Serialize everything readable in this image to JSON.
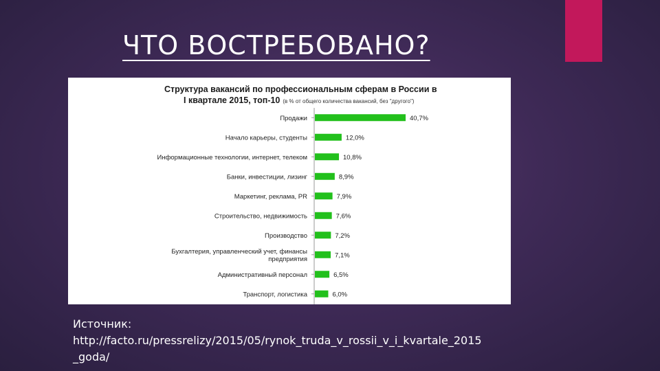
{
  "slide": {
    "title": "ЧТО ВОСТРЕБОВАНО? ",
    "source_label": "Источник:",
    "source_url_line1": "http://facto.ru/pressrelizy/2015/05/rynok_truda_v_rossii_v_i_kvartale_2015",
    "source_url_line2": "_goda/"
  },
  "colors": {
    "accent": "#c2185b",
    "bar": "#22c01c",
    "background": "#3f2a57"
  },
  "chart_data": {
    "type": "bar",
    "orientation": "horizontal",
    "title_line1": "Структура вакансий по профессиональным сферам в России в",
    "title_line2": "I квартале 2015, топ-10",
    "subtitle": "(в % от общего количества вакансий, без \"другого\")",
    "xlabel": "",
    "ylabel": "",
    "xlim": [
      0,
      45
    ],
    "grid": false,
    "legend": "none",
    "categories": [
      [
        "Продажи"
      ],
      [
        "Начало карьеры, студенты"
      ],
      [
        "Информационные технологии, интернет, телеком"
      ],
      [
        "Банки, инвестиции, лизинг"
      ],
      [
        "Маркетинг, реклама, PR"
      ],
      [
        "Строительство, недвижимость"
      ],
      [
        "Производство"
      ],
      [
        "Бухгалтерия, управленческий учет, финансы",
        "предприятия"
      ],
      [
        "Административный персонал"
      ],
      [
        "Транспорт, логистика"
      ]
    ],
    "values": [
      40.7,
      12.0,
      10.8,
      8.9,
      7.9,
      7.6,
      7.2,
      7.1,
      6.5,
      6.0
    ],
    "value_labels": [
      "40,7%",
      "12,0%",
      "10,8%",
      "8,9%",
      "7,9%",
      "7,6%",
      "7,2%",
      "7,1%",
      "6,5%",
      "6,0%"
    ]
  }
}
